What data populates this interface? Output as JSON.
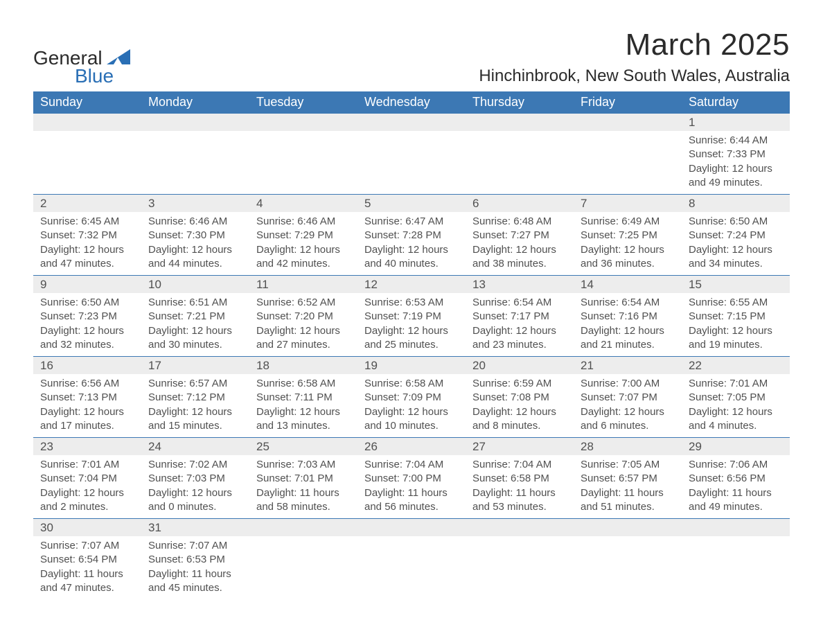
{
  "brand": {
    "name_part1": "General",
    "name_part2": "Blue",
    "tri_color": "#2a6fb5",
    "text_color": "#2b2b2b"
  },
  "header": {
    "month_title": "March 2025",
    "location": "Hinchinbrook, New South Wales, Australia"
  },
  "theme": {
    "header_bg": "#3c78b4",
    "header_fg": "#ffffff",
    "daynum_bg": "#ededed",
    "text_color": "#505050",
    "rule_color": "#3c78b4",
    "page_bg": "#ffffff"
  },
  "weekdays": [
    "Sunday",
    "Monday",
    "Tuesday",
    "Wednesday",
    "Thursday",
    "Friday",
    "Saturday"
  ],
  "weeks": [
    [
      null,
      null,
      null,
      null,
      null,
      null,
      {
        "d": "1",
        "sr": "Sunrise: 6:44 AM",
        "ss": "Sunset: 7:33 PM",
        "dl1": "Daylight: 12 hours",
        "dl2": "and 49 minutes."
      }
    ],
    [
      {
        "d": "2",
        "sr": "Sunrise: 6:45 AM",
        "ss": "Sunset: 7:32 PM",
        "dl1": "Daylight: 12 hours",
        "dl2": "and 47 minutes."
      },
      {
        "d": "3",
        "sr": "Sunrise: 6:46 AM",
        "ss": "Sunset: 7:30 PM",
        "dl1": "Daylight: 12 hours",
        "dl2": "and 44 minutes."
      },
      {
        "d": "4",
        "sr": "Sunrise: 6:46 AM",
        "ss": "Sunset: 7:29 PM",
        "dl1": "Daylight: 12 hours",
        "dl2": "and 42 minutes."
      },
      {
        "d": "5",
        "sr": "Sunrise: 6:47 AM",
        "ss": "Sunset: 7:28 PM",
        "dl1": "Daylight: 12 hours",
        "dl2": "and 40 minutes."
      },
      {
        "d": "6",
        "sr": "Sunrise: 6:48 AM",
        "ss": "Sunset: 7:27 PM",
        "dl1": "Daylight: 12 hours",
        "dl2": "and 38 minutes."
      },
      {
        "d": "7",
        "sr": "Sunrise: 6:49 AM",
        "ss": "Sunset: 7:25 PM",
        "dl1": "Daylight: 12 hours",
        "dl2": "and 36 minutes."
      },
      {
        "d": "8",
        "sr": "Sunrise: 6:50 AM",
        "ss": "Sunset: 7:24 PM",
        "dl1": "Daylight: 12 hours",
        "dl2": "and 34 minutes."
      }
    ],
    [
      {
        "d": "9",
        "sr": "Sunrise: 6:50 AM",
        "ss": "Sunset: 7:23 PM",
        "dl1": "Daylight: 12 hours",
        "dl2": "and 32 minutes."
      },
      {
        "d": "10",
        "sr": "Sunrise: 6:51 AM",
        "ss": "Sunset: 7:21 PM",
        "dl1": "Daylight: 12 hours",
        "dl2": "and 30 minutes."
      },
      {
        "d": "11",
        "sr": "Sunrise: 6:52 AM",
        "ss": "Sunset: 7:20 PM",
        "dl1": "Daylight: 12 hours",
        "dl2": "and 27 minutes."
      },
      {
        "d": "12",
        "sr": "Sunrise: 6:53 AM",
        "ss": "Sunset: 7:19 PM",
        "dl1": "Daylight: 12 hours",
        "dl2": "and 25 minutes."
      },
      {
        "d": "13",
        "sr": "Sunrise: 6:54 AM",
        "ss": "Sunset: 7:17 PM",
        "dl1": "Daylight: 12 hours",
        "dl2": "and 23 minutes."
      },
      {
        "d": "14",
        "sr": "Sunrise: 6:54 AM",
        "ss": "Sunset: 7:16 PM",
        "dl1": "Daylight: 12 hours",
        "dl2": "and 21 minutes."
      },
      {
        "d": "15",
        "sr": "Sunrise: 6:55 AM",
        "ss": "Sunset: 7:15 PM",
        "dl1": "Daylight: 12 hours",
        "dl2": "and 19 minutes."
      }
    ],
    [
      {
        "d": "16",
        "sr": "Sunrise: 6:56 AM",
        "ss": "Sunset: 7:13 PM",
        "dl1": "Daylight: 12 hours",
        "dl2": "and 17 minutes."
      },
      {
        "d": "17",
        "sr": "Sunrise: 6:57 AM",
        "ss": "Sunset: 7:12 PM",
        "dl1": "Daylight: 12 hours",
        "dl2": "and 15 minutes."
      },
      {
        "d": "18",
        "sr": "Sunrise: 6:58 AM",
        "ss": "Sunset: 7:11 PM",
        "dl1": "Daylight: 12 hours",
        "dl2": "and 13 minutes."
      },
      {
        "d": "19",
        "sr": "Sunrise: 6:58 AM",
        "ss": "Sunset: 7:09 PM",
        "dl1": "Daylight: 12 hours",
        "dl2": "and 10 minutes."
      },
      {
        "d": "20",
        "sr": "Sunrise: 6:59 AM",
        "ss": "Sunset: 7:08 PM",
        "dl1": "Daylight: 12 hours",
        "dl2": "and 8 minutes."
      },
      {
        "d": "21",
        "sr": "Sunrise: 7:00 AM",
        "ss": "Sunset: 7:07 PM",
        "dl1": "Daylight: 12 hours",
        "dl2": "and 6 minutes."
      },
      {
        "d": "22",
        "sr": "Sunrise: 7:01 AM",
        "ss": "Sunset: 7:05 PM",
        "dl1": "Daylight: 12 hours",
        "dl2": "and 4 minutes."
      }
    ],
    [
      {
        "d": "23",
        "sr": "Sunrise: 7:01 AM",
        "ss": "Sunset: 7:04 PM",
        "dl1": "Daylight: 12 hours",
        "dl2": "and 2 minutes."
      },
      {
        "d": "24",
        "sr": "Sunrise: 7:02 AM",
        "ss": "Sunset: 7:03 PM",
        "dl1": "Daylight: 12 hours",
        "dl2": "and 0 minutes."
      },
      {
        "d": "25",
        "sr": "Sunrise: 7:03 AM",
        "ss": "Sunset: 7:01 PM",
        "dl1": "Daylight: 11 hours",
        "dl2": "and 58 minutes."
      },
      {
        "d": "26",
        "sr": "Sunrise: 7:04 AM",
        "ss": "Sunset: 7:00 PM",
        "dl1": "Daylight: 11 hours",
        "dl2": "and 56 minutes."
      },
      {
        "d": "27",
        "sr": "Sunrise: 7:04 AM",
        "ss": "Sunset: 6:58 PM",
        "dl1": "Daylight: 11 hours",
        "dl2": "and 53 minutes."
      },
      {
        "d": "28",
        "sr": "Sunrise: 7:05 AM",
        "ss": "Sunset: 6:57 PM",
        "dl1": "Daylight: 11 hours",
        "dl2": "and 51 minutes."
      },
      {
        "d": "29",
        "sr": "Sunrise: 7:06 AM",
        "ss": "Sunset: 6:56 PM",
        "dl1": "Daylight: 11 hours",
        "dl2": "and 49 minutes."
      }
    ],
    [
      {
        "d": "30",
        "sr": "Sunrise: 7:07 AM",
        "ss": "Sunset: 6:54 PM",
        "dl1": "Daylight: 11 hours",
        "dl2": "and 47 minutes."
      },
      {
        "d": "31",
        "sr": "Sunrise: 7:07 AM",
        "ss": "Sunset: 6:53 PM",
        "dl1": "Daylight: 11 hours",
        "dl2": "and 45 minutes."
      },
      null,
      null,
      null,
      null,
      null
    ]
  ]
}
